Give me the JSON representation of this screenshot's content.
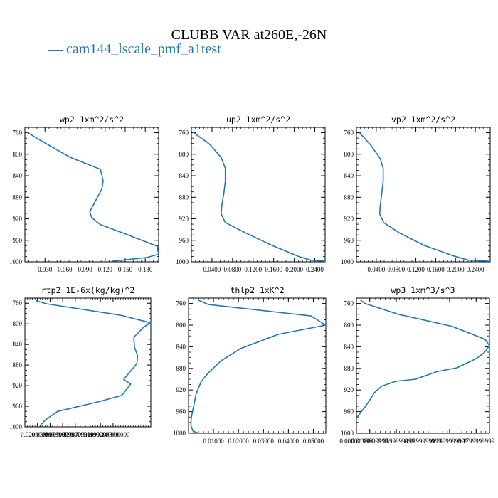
{
  "figure": {
    "title": "CLUBB VAR at260E,-26N",
    "legend": "— cam144_lscale_pmf_a1test",
    "series_color": "#1f77b4"
  },
  "chart_data": [
    {
      "type": "line",
      "title": "wp2   1xm^2/s^2",
      "ylim": [
        1000,
        750
      ],
      "xlim": [
        0.0,
        0.2
      ],
      "yticks": [
        "760",
        "800",
        "840",
        "880",
        "920",
        "960",
        "1000"
      ],
      "xticks": [
        "0.030",
        "0.060",
        "0.090",
        "0.120",
        "0.150",
        "0.180"
      ],
      "xtick_values": [
        0.03,
        0.06,
        0.09,
        0.12,
        0.15,
        0.18
      ],
      "ytick_values": [
        760,
        800,
        840,
        880,
        920,
        960,
        1000
      ],
      "points": [
        [
          0.003,
          759
        ],
        [
          0.026,
          776
        ],
        [
          0.068,
          806
        ],
        [
          0.113,
          828
        ],
        [
          0.117,
          850
        ],
        [
          0.115,
          865
        ],
        [
          0.106,
          886
        ],
        [
          0.099,
          902
        ],
        [
          0.097,
          908
        ],
        [
          0.1,
          918
        ],
        [
          0.113,
          931
        ],
        [
          0.146,
          946
        ],
        [
          0.198,
          971
        ],
        [
          0.2,
          986
        ],
        [
          0.182,
          992
        ],
        [
          0.13,
          999
        ]
      ]
    },
    {
      "type": "line",
      "title": "up2   1xm^2/s^2",
      "ylim": [
        1000,
        750
      ],
      "xlim": [
        0.0,
        0.26
      ],
      "yticks": [
        "760",
        "800",
        "840",
        "880",
        "920",
        "960",
        "1000"
      ],
      "xticks": [
        "0.0400",
        "0.0800",
        "0.1200",
        "0.1600",
        "0.2000",
        "0.2400"
      ],
      "xtick_values": [
        0.04,
        0.08,
        0.12,
        0.16,
        0.2,
        0.24
      ],
      "ytick_values": [
        760,
        800,
        840,
        880,
        920,
        960,
        1000
      ],
      "points": [
        [
          0.003,
          759
        ],
        [
          0.035,
          781
        ],
        [
          0.058,
          806
        ],
        [
          0.066,
          826
        ],
        [
          0.066,
          850
        ],
        [
          0.063,
          873
        ],
        [
          0.059,
          896
        ],
        [
          0.058,
          911
        ],
        [
          0.066,
          927
        ],
        [
          0.105,
          946
        ],
        [
          0.158,
          970
        ],
        [
          0.208,
          990
        ],
        [
          0.232,
          997
        ],
        [
          0.26,
          999
        ]
      ]
    },
    {
      "type": "line",
      "title": "vp2   1xm^2/s^2",
      "ylim": [
        1000,
        750
      ],
      "xlim": [
        0.0,
        0.27
      ],
      "yticks": [
        "760",
        "800",
        "840",
        "880",
        "920",
        "960",
        "1000"
      ],
      "xticks": [
        "0.0400",
        "0.0800",
        "0.1200",
        "0.1600",
        "0.2000",
        "0.2400"
      ],
      "xtick_values": [
        0.04,
        0.08,
        0.12,
        0.16,
        0.2,
        0.24
      ],
      "ytick_values": [
        760,
        800,
        840,
        880,
        920,
        960,
        1000
      ],
      "points": [
        [
          0.005,
          759
        ],
        [
          0.028,
          782
        ],
        [
          0.048,
          808
        ],
        [
          0.054,
          826
        ],
        [
          0.054,
          850
        ],
        [
          0.051,
          873
        ],
        [
          0.048,
          896
        ],
        [
          0.047,
          911
        ],
        [
          0.055,
          927
        ],
        [
          0.088,
          947
        ],
        [
          0.138,
          970
        ],
        [
          0.196,
          989
        ],
        [
          0.226,
          997
        ],
        [
          0.27,
          999
        ]
      ]
    },
    {
      "type": "line",
      "title": "rtp2   1E-6x(kg/kg)^2",
      "ylim": [
        1000,
        750
      ],
      "xlim": [
        0.0,
        0.2
      ],
      "yticks": [
        "760",
        "800",
        "840",
        "880",
        "920",
        "960",
        "1000"
      ],
      "xticks": [
        "0.020000000",
        "0.0399999950",
        "0.0599999870",
        "0.0799999830",
        "0.0999999920",
        "0.1199999860",
        "0.140000000"
      ],
      "xtick_values": [
        0.02,
        0.04,
        0.06,
        0.08,
        0.1,
        0.12,
        0.14
      ],
      "ytick_values": [
        760,
        800,
        840,
        880,
        920,
        960,
        1000
      ],
      "points": [
        [
          0.018,
          755
        ],
        [
          0.034,
          761
        ],
        [
          0.151,
          783
        ],
        [
          0.2,
          798
        ],
        [
          0.189,
          806
        ],
        [
          0.173,
          826
        ],
        [
          0.174,
          845
        ],
        [
          0.179,
          862
        ],
        [
          0.178,
          877
        ],
        [
          0.165,
          896
        ],
        [
          0.157,
          908
        ],
        [
          0.168,
          917
        ],
        [
          0.154,
          939
        ],
        [
          0.118,
          951
        ],
        [
          0.052,
          970
        ],
        [
          0.032,
          987
        ],
        [
          0.026,
          995
        ],
        [
          0.025,
          999
        ]
      ]
    },
    {
      "type": "line",
      "title": "thlp2   1xK^2",
      "ylim": [
        1000,
        750
      ],
      "xlim": [
        0.0,
        0.055
      ],
      "yticks": [
        "760",
        "800",
        "840",
        "880",
        "920",
        "960",
        "1000"
      ],
      "xticks": [
        "0.01000",
        "0.02000",
        "0.03000",
        "0.04000",
        "0.05000"
      ],
      "xtick_values": [
        0.01,
        0.02,
        0.03,
        0.04,
        0.05
      ],
      "ytick_values": [
        760,
        800,
        840,
        880,
        920,
        960,
        1000
      ],
      "points": [
        [
          0.004,
          754
        ],
        [
          0.008,
          762
        ],
        [
          0.049,
          783
        ],
        [
          0.055,
          800
        ],
        [
          0.036,
          817
        ],
        [
          0.021,
          843
        ],
        [
          0.013,
          866
        ],
        [
          0.008,
          888
        ],
        [
          0.005,
          905
        ],
        [
          0.003,
          928
        ],
        [
          0.0022,
          947
        ],
        [
          0.0015,
          962
        ],
        [
          0.001,
          975
        ],
        [
          0.001,
          986
        ],
        [
          0.0018,
          996
        ],
        [
          0.004,
          1000
        ]
      ]
    },
    {
      "type": "line",
      "title": "wp3   1xm^3/s^3",
      "ylim": [
        1000,
        750
      ],
      "xlim": [
        0.0,
        0.2
      ],
      "yticks": [
        "760",
        "800",
        "840",
        "880",
        "920",
        "960",
        "1000"
      ],
      "xticks": [
        "0.000000000",
        "0.0199999999",
        "0.0599999999",
        "0.0999999999",
        "0.1399999999",
        "0.1799999999"
      ],
      "xtick_values": [
        0.0,
        0.02,
        0.06,
        0.1,
        0.14,
        0.18
      ],
      "ytick_values": [
        760,
        800,
        840,
        880,
        920,
        960,
        1000
      ],
      "points": [
        [
          0.006,
          754
        ],
        [
          0.013,
          760
        ],
        [
          0.063,
          780
        ],
        [
          0.143,
          802
        ],
        [
          0.193,
          826
        ],
        [
          0.2,
          838
        ],
        [
          0.192,
          851
        ],
        [
          0.18,
          862
        ],
        [
          0.151,
          879
        ],
        [
          0.121,
          886
        ],
        [
          0.089,
          900
        ],
        [
          0.059,
          904
        ],
        [
          0.038,
          913
        ],
        [
          0.027,
          925
        ],
        [
          0.022,
          935
        ],
        [
          0.012,
          953
        ],
        [
          0.003,
          967
        ],
        [
          0.0,
          972
        ]
      ]
    }
  ]
}
